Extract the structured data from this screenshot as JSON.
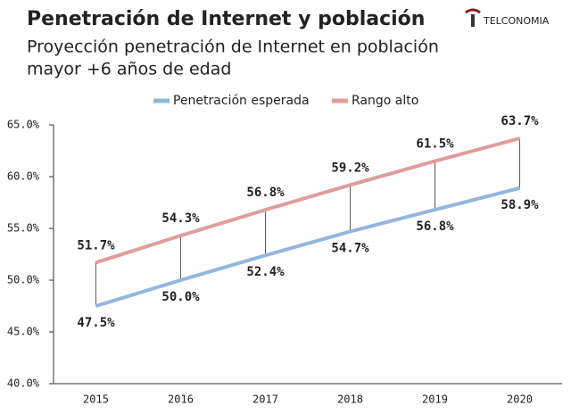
{
  "brand": "TELCONOMIA",
  "chart_data": {
    "type": "line",
    "title": "Penetración de Internet y población",
    "subtitle": [
      "Proyección penetración de Internet en población",
      "mayor +6 años de edad"
    ],
    "categories": [
      "2015",
      "2016",
      "2017",
      "2018",
      "2019",
      "2020"
    ],
    "series": [
      {
        "name": "Penetración esperada",
        "color": "#93b6de",
        "values": [
          47.5,
          50.0,
          52.4,
          54.7,
          56.8,
          58.9
        ],
        "value_labels": [
          "47.5%",
          "50.0%",
          "52.4%",
          "54.7%",
          "56.8%",
          "58.9%"
        ]
      },
      {
        "name": "Rango alto",
        "color": "#df9d9d",
        "values": [
          51.7,
          54.3,
          56.8,
          59.2,
          61.5,
          63.7
        ],
        "value_labels": [
          "51.7%",
          "54.3%",
          "56.8%",
          "59.2%",
          "61.5%",
          "63.7%"
        ]
      }
    ],
    "ylim": [
      40,
      65
    ],
    "yticks": [
      {
        "value": 40,
        "label": "40.0%"
      },
      {
        "value": 45,
        "label": "45.0%"
      },
      {
        "value": 50,
        "label": "50.0%"
      },
      {
        "value": 55,
        "label": "55.0%"
      },
      {
        "value": 60,
        "label": "60.0%"
      },
      {
        "value": 65,
        "label": "65.0%"
      }
    ],
    "grid": false,
    "legend": "top"
  }
}
